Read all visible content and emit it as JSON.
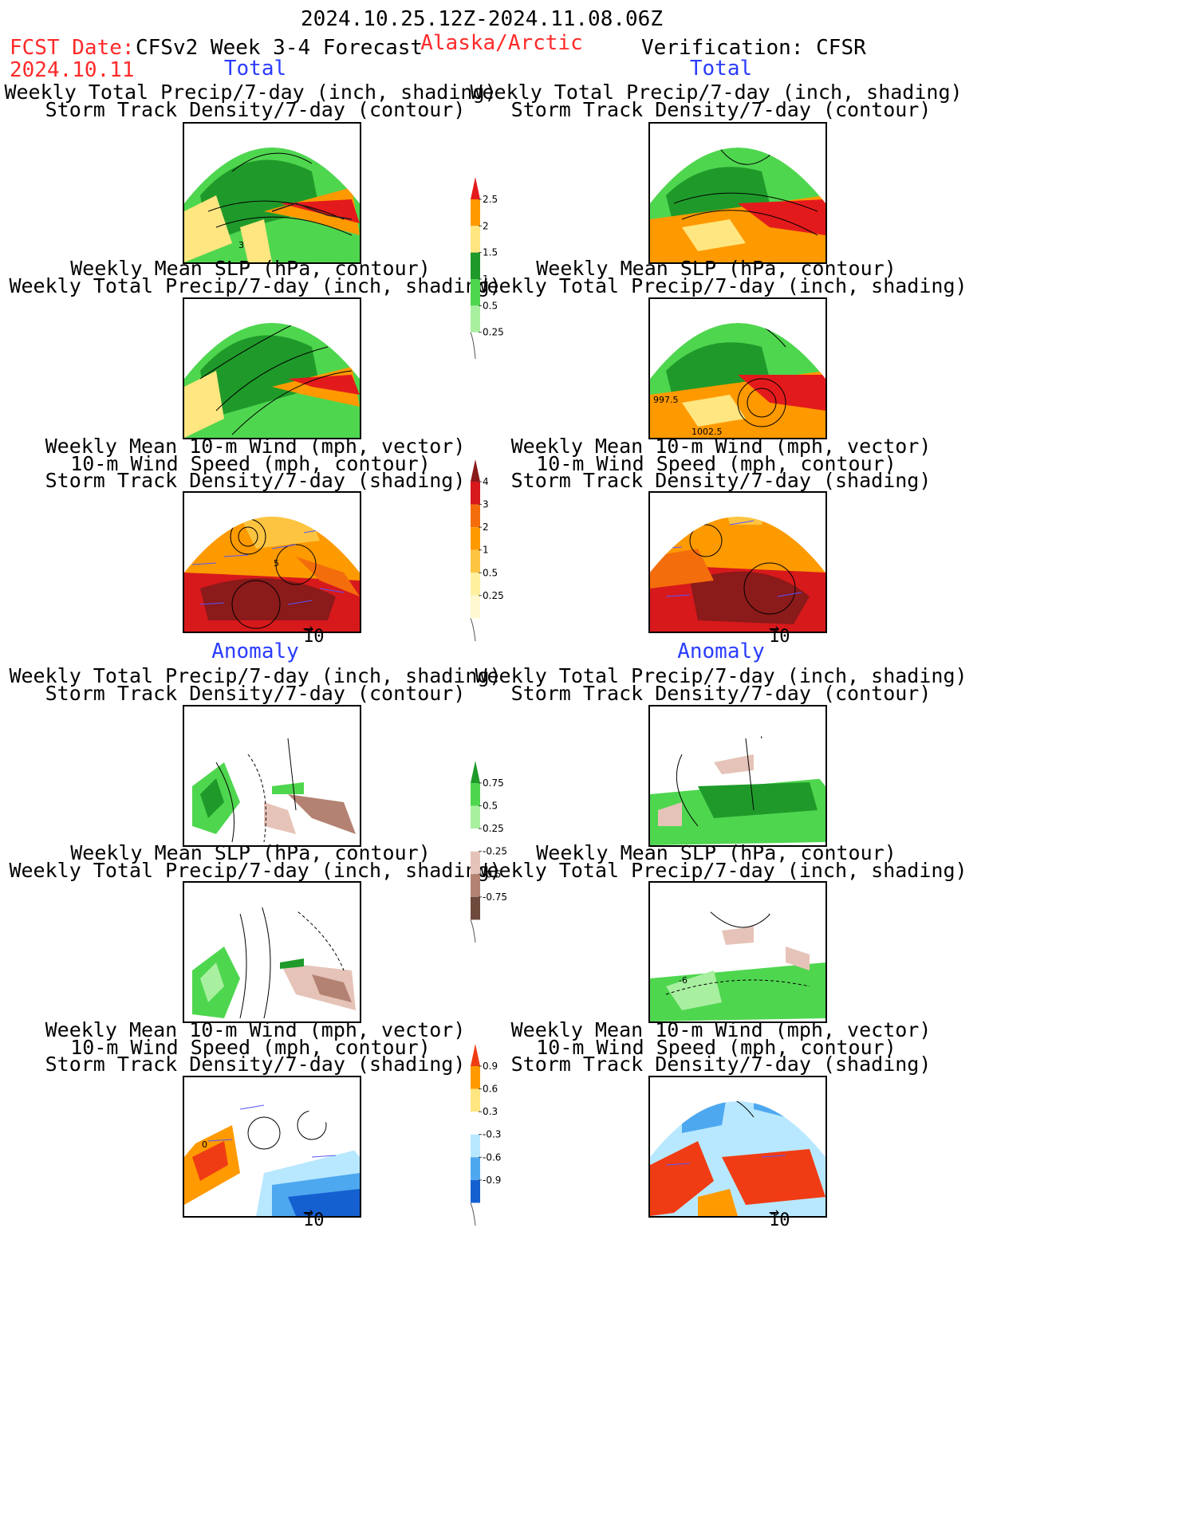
{
  "header": {
    "date_range": "2024.10.25.12Z-2024.11.08.06Z",
    "fcst_date_label": "FCST Date:",
    "fcst_date": "2024.10.11",
    "model": "CFSv2 Week 3-4 Forecast",
    "region": "Alaska/Arctic",
    "verification": "Verification: CFSR"
  },
  "sections": {
    "total": "Total",
    "anomaly": "Anomaly"
  },
  "panel_titles": {
    "precip_storm": [
      "Weekly Total Precip/7-day (inch, shading)",
      "Storm Track Density/7-day (contour)"
    ],
    "slp_precip": [
      "Weekly Mean SLP (hPa, contour)",
      "Weekly Total Precip/7-day (inch, shading)"
    ],
    "wind_storm": [
      "Weekly Mean 10-m Wind (mph, vector)",
      "10-m Wind Speed (mph, contour)",
      "Storm Track Density/7-day (shading)"
    ]
  },
  "contour_labels": {
    "fcst_precip_storm": "3",
    "fcst_wind_storm": "5",
    "verif_slp_a": "997.5",
    "verif_slp_b": "1002.5",
    "verif_slp_anom": "-6",
    "fcst_wind_anom": "0"
  },
  "vector_reference": "10",
  "colorbars": {
    "precip_total": {
      "labels": [
        "2.5",
        "2",
        "1.5",
        "1",
        "0.5",
        "0.25"
      ],
      "colors": [
        "#e31a1c",
        "#ff9900",
        "#ffe680",
        "#1f9a2a",
        "#4fd64f",
        "#a8f0a0"
      ]
    },
    "storm_total": {
      "labels": [
        "4",
        "3",
        "2",
        "1",
        "0.5",
        "0.25"
      ],
      "colors": [
        "#8b1a1a",
        "#d7191c",
        "#f46d0c",
        "#fd9a00",
        "#fcc441",
        "#fff0a0",
        "#fff8d0"
      ]
    },
    "precip_anom": {
      "labels": [
        "0.75",
        "0.5",
        "0.25",
        "-0.25",
        "-0.5",
        "-0.75"
      ],
      "colors": [
        "#1f9a2a",
        "#4fd64f",
        "#a8f0a0",
        "#ffffff",
        "#e6c3b8",
        "#b38272",
        "#6e4a3c"
      ]
    },
    "storm_anom": {
      "labels": [
        "0.9",
        "0.6",
        "0.3",
        "-0.3",
        "-0.6",
        "-0.9"
      ],
      "colors": [
        "#f03c14",
        "#ff9a00",
        "#ffe680",
        "#ffffff",
        "#b8e8ff",
        "#4ea8f0",
        "#1560d0"
      ]
    }
  }
}
